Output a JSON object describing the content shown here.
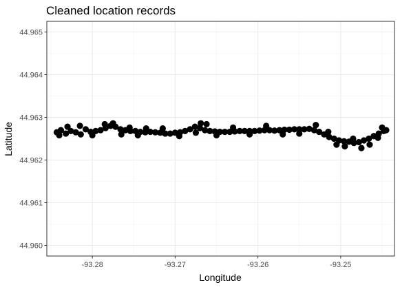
{
  "chart_data": {
    "type": "scatter",
    "title": "Cleaned location records",
    "xlabel": "Longitude",
    "ylabel": "Latitude",
    "xlim": [
      -93.2855,
      -93.2435
    ],
    "ylim": [
      44.95975,
      44.96525
    ],
    "x_ticks": [
      -93.28,
      -93.27,
      -93.26,
      -93.25
    ],
    "x_tick_labels": [
      "-93.28",
      "-93.27",
      "-93.26",
      "-93.25"
    ],
    "y_ticks": [
      44.96,
      44.961,
      44.962,
      44.963,
      44.964,
      44.965
    ],
    "y_tick_labels": [
      "44.960",
      "44.961",
      "44.962",
      "44.963",
      "44.964",
      "44.965"
    ],
    "grid": true,
    "legend": "none",
    "theme": "bw",
    "point_color": "#000000",
    "series": [
      {
        "x": [
          -93.2843,
          -93.2838,
          -93.2832,
          -93.2826,
          -93.282,
          -93.2814,
          -93.2808,
          -93.2802,
          -93.2796,
          -93.279,
          -93.2784,
          -93.2778,
          -93.2772,
          -93.2766,
          -93.276,
          -93.2754,
          -93.2748,
          -93.2742,
          -93.2736,
          -93.273,
          -93.2724,
          -93.2718,
          -93.2712,
          -93.2706,
          -93.27,
          -93.2694,
          -93.2688,
          -93.2682,
          -93.2676,
          -93.267,
          -93.2664,
          -93.2658,
          -93.2652,
          -93.2646,
          -93.264,
          -93.2634,
          -93.2628,
          -93.2622,
          -93.2616,
          -93.261,
          -93.2604,
          -93.2598,
          -93.2592,
          -93.2586,
          -93.258,
          -93.2574,
          -93.2568,
          -93.2562,
          -93.2556,
          -93.255,
          -93.2544,
          -93.2538,
          -93.2532,
          -93.2526,
          -93.252,
          -93.2514,
          -93.2508,
          -93.2502,
          -93.2496,
          -93.249,
          -93.2484,
          -93.2478,
          -93.2472,
          -93.2466,
          -93.246,
          -93.2454,
          -93.2448,
          -93.2445,
          -93.284,
          -93.283,
          -93.2815,
          -93.28,
          -93.2785,
          -93.2775,
          -93.2765,
          -93.2755,
          -93.2745,
          -93.2735,
          -93.2715,
          -93.2695,
          -93.2675,
          -93.2669,
          -93.2662,
          -93.265,
          -93.263,
          -93.261,
          -93.259,
          -93.257,
          -93.255,
          -93.253,
          -93.2515,
          -93.2505,
          -93.2495,
          -93.2485,
          -93.2475,
          -93.2465,
          -93.2455,
          -93.245
        ],
        "y": [
          44.96265,
          44.9627,
          44.96262,
          44.96268,
          44.96265,
          44.9626,
          44.96272,
          44.96266,
          44.96268,
          44.9627,
          44.96275,
          44.9628,
          44.96278,
          44.96272,
          44.9627,
          44.96268,
          44.96268,
          44.96266,
          44.96265,
          44.96266,
          44.96265,
          44.96264,
          44.96262,
          44.96262,
          44.96264,
          44.96265,
          44.96268,
          44.96272,
          44.96278,
          44.96275,
          44.9627,
          44.96268,
          44.96267,
          44.96266,
          44.96266,
          44.96266,
          44.96267,
          44.96268,
          44.96268,
          44.96268,
          44.96268,
          44.96269,
          44.9627,
          44.9627,
          44.96269,
          44.9627,
          44.96271,
          44.96271,
          44.96272,
          44.96272,
          44.96272,
          44.96273,
          44.9627,
          44.96266,
          44.9626,
          44.96254,
          44.9625,
          44.96246,
          44.96244,
          44.96243,
          44.9624,
          44.96242,
          44.96246,
          44.9625,
          44.96256,
          44.96262,
          44.96268,
          44.9627,
          44.96258,
          44.96278,
          44.9628,
          44.96258,
          44.96284,
          44.96286,
          44.9626,
          44.96276,
          44.96258,
          44.96274,
          44.96274,
          44.96256,
          44.96264,
          44.96286,
          44.96284,
          44.96258,
          44.96276,
          44.9626,
          44.9628,
          44.9626,
          44.96262,
          44.96282,
          44.96266,
          44.96236,
          44.96232,
          44.9625,
          44.96228,
          44.96236,
          44.96252,
          44.96276
        ]
      }
    ]
  }
}
